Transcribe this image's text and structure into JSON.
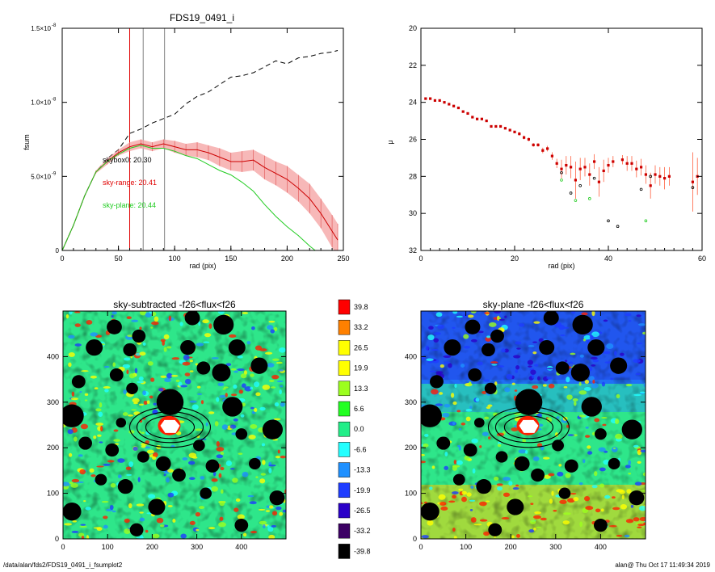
{
  "chart_data": [
    {
      "type": "line",
      "title": "FDS19_0491_i",
      "xlabel": "rad (pix)",
      "ylabel": "fsum",
      "xlim": [
        0,
        250
      ],
      "ylim": [
        0,
        1.5e-08
      ],
      "x_ticks": [
        "0",
        "50",
        "100",
        "150",
        "200",
        "250"
      ],
      "y_ticks": [
        "0",
        "5.0×10",
        "1.0×10",
        "1.5×10"
      ],
      "y_tick_exponents": [
        "",
        "-9",
        "-8",
        "-8"
      ],
      "vlines": [
        {
          "x": 60,
          "color": "#e00000"
        },
        {
          "x": 72,
          "color": "#808080"
        },
        {
          "x": 91,
          "color": "#808080"
        }
      ],
      "annotations": [
        {
          "text": "skybox0: 20.30",
          "color": "#000000"
        },
        {
          "text": "sky-range: 20.41",
          "color": "#e00000"
        },
        {
          "text": "sky-plane: 20.44",
          "color": "#22cc22"
        }
      ],
      "series": [
        {
          "style": "dashed",
          "color": "#000000",
          "x": [
            0,
            10,
            20,
            30,
            40,
            50,
            60,
            70,
            80,
            90,
            100,
            110,
            120,
            130,
            140,
            150,
            160,
            170,
            180,
            190,
            200,
            210,
            220,
            230,
            240,
            245
          ],
          "y": [
            0,
            1.7e-09,
            3.7e-09,
            5.3e-09,
            6.2e-09,
            6.8e-09,
            7.9e-09,
            8.2e-09,
            8.6e-09,
            8.9e-09,
            9.2e-09,
            9.9e-09,
            1.04e-08,
            1.07e-08,
            1.12e-08,
            1.17e-08,
            1.18e-08,
            1.2e-08,
            1.24e-08,
            1.28e-08,
            1.26e-08,
            1.3e-08,
            1.31e-08,
            1.33e-08,
            1.34e-08,
            1.35e-08
          ]
        },
        {
          "style": "solid-errorband",
          "color": "#cc0000",
          "band": "#f4a0a0",
          "x": [
            0,
            10,
            20,
            30,
            40,
            50,
            60,
            70,
            80,
            90,
            100,
            110,
            120,
            130,
            140,
            150,
            160,
            170,
            180,
            190,
            200,
            210,
            220,
            230,
            240,
            245
          ],
          "y": [
            0,
            1.7e-09,
            3.7e-09,
            5.3e-09,
            6e-09,
            6.6e-09,
            7e-09,
            7.2e-09,
            7e-09,
            7.2e-09,
            7e-09,
            6.8e-09,
            6.8e-09,
            6.6e-09,
            6.3e-09,
            6e-09,
            6e-09,
            6.1e-09,
            5.6e-09,
            5.2e-09,
            4.8e-09,
            4.2e-09,
            3.5e-09,
            2.5e-09,
            1.3e-09,
            7e-10
          ],
          "err": [
            0,
            0,
            0,
            1e-10,
            2e-10,
            2e-10,
            3e-10,
            3e-10,
            3e-10,
            3e-10,
            4e-10,
            4e-10,
            5e-10,
            5e-10,
            6e-10,
            6e-10,
            7e-10,
            7e-10,
            8e-10,
            8e-10,
            9e-10,
            9e-10,
            1e-09,
            1e-09,
            1.1e-09,
            1.1e-09
          ]
        },
        {
          "style": "solid",
          "color": "#22cc22",
          "x": [
            0,
            10,
            20,
            30,
            40,
            50,
            60,
            70,
            80,
            90,
            100,
            110,
            120,
            130,
            140,
            150,
            160,
            170,
            180,
            190,
            200,
            210,
            220,
            225
          ],
          "y": [
            0,
            1.7e-09,
            3.7e-09,
            5.3e-09,
            6e-09,
            6.5e-09,
            6.9e-09,
            7.1e-09,
            6.9e-09,
            6.9e-09,
            6.7e-09,
            6.4e-09,
            6.2e-09,
            5.8e-09,
            5.4e-09,
            5.1e-09,
            4.6e-09,
            4e-09,
            3.1e-09,
            2.3e-09,
            1.6e-09,
            1e-09,
            3e-10,
            0
          ]
        }
      ]
    },
    {
      "type": "scatter",
      "title": "",
      "xlabel": "rad (pix)",
      "ylabel": "μ",
      "xlim": [
        0,
        60
      ],
      "ylim": [
        32,
        20
      ],
      "x_ticks": [
        "0",
        "20",
        "40",
        "60"
      ],
      "y_ticks": [
        "20",
        "22",
        "24",
        "26",
        "28",
        "30",
        "32"
      ],
      "series": [
        {
          "name": "",
          "color": "#cc0000",
          "marker": "square-errorbar",
          "x": [
            1,
            2,
            3,
            4,
            5,
            6,
            7,
            8,
            9,
            10,
            11,
            12,
            13,
            14,
            15,
            16,
            17,
            18,
            19,
            20,
            21,
            22,
            23,
            24,
            25,
            26,
            27,
            28,
            29,
            30,
            31,
            32,
            33,
            34,
            35,
            36,
            37,
            38,
            39,
            40,
            41,
            43,
            44,
            45,
            46,
            47,
            48,
            49,
            50,
            51,
            52,
            53,
            58,
            59
          ],
          "y": [
            23.8,
            23.8,
            23.9,
            23.9,
            24.0,
            24.1,
            24.2,
            24.3,
            24.5,
            24.6,
            24.8,
            24.9,
            24.9,
            25.0,
            25.3,
            25.3,
            25.3,
            25.4,
            25.5,
            25.6,
            25.7,
            25.9,
            26.0,
            26.3,
            26.3,
            26.6,
            26.5,
            26.9,
            27.3,
            27.6,
            27.4,
            27.5,
            28.2,
            27.6,
            27.5,
            27.9,
            27.2,
            28.3,
            27.7,
            27.4,
            27.2,
            27.1,
            27.3,
            27.3,
            27.6,
            27.5,
            27.9,
            28.5,
            27.9,
            28.0,
            28.1,
            28.0,
            28.3,
            28.0
          ],
          "err": [
            0.1,
            0.1,
            0.1,
            0.1,
            0.1,
            0.1,
            0.1,
            0.1,
            0.1,
            0.1,
            0.1,
            0.1,
            0.1,
            0.1,
            0.1,
            0.1,
            0.1,
            0.1,
            0.1,
            0.1,
            0.2,
            0.2,
            0.2,
            0.2,
            0.2,
            0.3,
            0.3,
            0.4,
            0.5,
            1.0,
            1.0,
            1.2,
            2.0,
            1.2,
            1.0,
            1.2,
            0.8,
            1.6,
            1.2,
            0.8,
            0.6,
            0.5,
            0.8,
            0.8,
            0.9,
            0.9,
            1.0,
            1.4,
            1.0,
            1.0,
            1.2,
            1.0,
            3.2,
            2.0
          ]
        },
        {
          "name": "",
          "color": "#22cc22",
          "marker": "open-circle",
          "x": [
            30,
            33,
            36,
            48
          ],
          "y": [
            28.2,
            29.3,
            29.2,
            30.4
          ]
        },
        {
          "name": "",
          "color": "#000000",
          "marker": "open-circle",
          "x": [
            30,
            32,
            34,
            37,
            40,
            42,
            47,
            49,
            58
          ],
          "y": [
            27.8,
            28.9,
            28.5,
            28.1,
            30.4,
            30.7,
            28.7,
            28.0,
            28.6
          ]
        }
      ]
    },
    {
      "type": "heatmap",
      "title": "sky-subtracted -f26<flux<f26",
      "xlim": [
        0,
        500
      ],
      "ylim": [
        0,
        500
      ],
      "x_ticks": [
        "0",
        "100",
        "200",
        "300",
        "400"
      ],
      "y_ticks": [
        "0",
        "100",
        "200",
        "300",
        "400"
      ],
      "ellipse_center": [
        240,
        245
      ]
    },
    {
      "type": "heatmap",
      "title": "sky-plane -f26<flux<f26",
      "xlim": [
        0,
        500
      ],
      "ylim": [
        0,
        500
      ],
      "x_ticks": [
        "0",
        "100",
        "200",
        "300",
        "400"
      ],
      "y_ticks": [
        "0",
        "100",
        "200",
        "300",
        "400"
      ],
      "ellipse_center": [
        240,
        245
      ]
    }
  ],
  "colorbar": {
    "labels": [
      "39.8",
      "33.2",
      "26.5",
      "19.9",
      "13.3",
      "6.6",
      "0.0",
      "-6.6",
      "-13.3",
      "-19.9",
      "-26.5",
      "-33.2",
      "-39.8"
    ],
    "colors": [
      "#ff0000",
      "#ff8000",
      "#ffff00",
      "#ffff00",
      "#9cff1e",
      "#22ff22",
      "#22ee88",
      "#22ffff",
      "#1e90ff",
      "#1e3cff",
      "#2a00c8",
      "#3c0064",
      "#000000"
    ]
  },
  "footer": {
    "left": "/data/alan/fds2/FDS19_0491_i_fsumplot2",
    "right": "alan@  Thu Oct 17 11:49:34 2019"
  }
}
